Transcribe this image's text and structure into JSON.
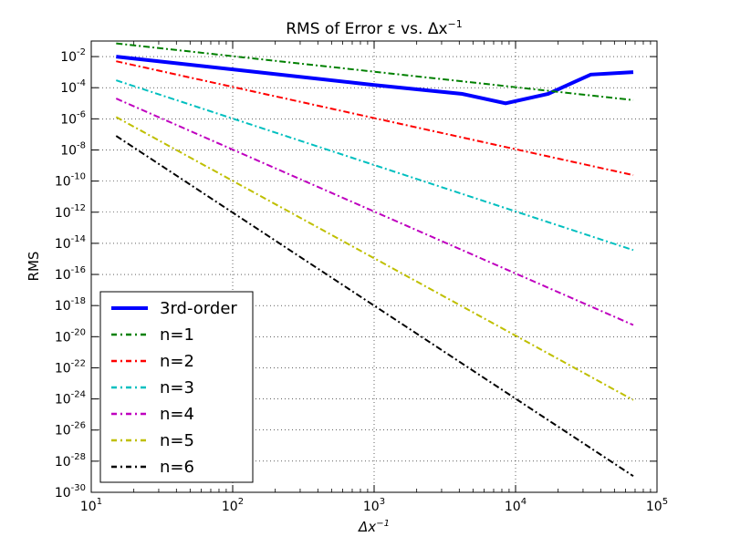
{
  "chart_data": {
    "type": "line",
    "title": "RMS of Error ε vs. Δx",
    "title_superscript": "−1",
    "xlabel": "Δx",
    "xlabel_superscript": "−1",
    "ylabel": "RMS",
    "xscale": "log",
    "yscale": "log",
    "xlim": [
      10,
      100000
    ],
    "ylim": [
      1e-30,
      0.1
    ],
    "grid": true,
    "legend_position": "lower-left",
    "xticks": [
      {
        "value": 10,
        "base": "10",
        "exp": "1"
      },
      {
        "value": 100,
        "base": "10",
        "exp": "2"
      },
      {
        "value": 1000,
        "base": "10",
        "exp": "3"
      },
      {
        "value": 10000,
        "base": "10",
        "exp": "4"
      },
      {
        "value": 100000,
        "base": "10",
        "exp": "5"
      }
    ],
    "yticks": [
      {
        "value": 0.01,
        "base": "10",
        "exp": "-2"
      },
      {
        "value": 0.0001,
        "base": "10",
        "exp": "-4"
      },
      {
        "value": 1e-06,
        "base": "10",
        "exp": "-6"
      },
      {
        "value": 1e-08,
        "base": "10",
        "exp": "-8"
      },
      {
        "value": 1e-10,
        "base": "10",
        "exp": "-10"
      },
      {
        "value": 1e-12,
        "base": "10",
        "exp": "-12"
      },
      {
        "value": 1e-14,
        "base": "10",
        "exp": "-14"
      },
      {
        "value": 1e-16,
        "base": "10",
        "exp": "-16"
      },
      {
        "value": 1e-18,
        "base": "10",
        "exp": "-18"
      },
      {
        "value": 1e-20,
        "base": "10",
        "exp": "-20"
      },
      {
        "value": 1e-22,
        "base": "10",
        "exp": "-22"
      },
      {
        "value": 1e-24,
        "base": "10",
        "exp": "-24"
      },
      {
        "value": 1e-26,
        "base": "10",
        "exp": "-26"
      },
      {
        "value": 1e-28,
        "base": "10",
        "exp": "-28"
      },
      {
        "value": 1e-30,
        "base": "10",
        "exp": "-30"
      }
    ],
    "series": [
      {
        "name": "3rd-order",
        "color": "#0000ff",
        "style": "solid",
        "x": [
          15,
          100,
          1000,
          4200,
          8500,
          17000,
          34000,
          68000
        ],
        "y": [
          0.01,
          0.0015,
          0.00015,
          4e-05,
          1e-05,
          4e-05,
          0.0007,
          0.001
        ]
      },
      {
        "name": "n=1",
        "color": "#008000",
        "style": "dashdot",
        "x": [
          15,
          68000
        ],
        "y": [
          0.07,
          1.6e-05
        ]
      },
      {
        "name": "n=2",
        "color": "#ff0000",
        "style": "dashdot",
        "x": [
          15,
          68000
        ],
        "y": [
          0.005,
          2.4e-10
        ]
      },
      {
        "name": "n=3",
        "color": "#00bfbf",
        "style": "dashdot",
        "x": [
          15,
          68000
        ],
        "y": [
          0.0003,
          3.7e-15
        ]
      },
      {
        "name": "n=4",
        "color": "#bf00bf",
        "style": "dashdot",
        "x": [
          15,
          68000
        ],
        "y": [
          2e-05,
          5.6e-20
        ]
      },
      {
        "name": "n=5",
        "color": "#bfbf00",
        "style": "dashdot",
        "x": [
          15,
          68000
        ],
        "y": [
          1.3e-06,
          8.5e-25
        ]
      },
      {
        "name": "n=6",
        "color": "#000000",
        "style": "dashdot",
        "x": [
          15,
          68000
        ],
        "y": [
          8e-08,
          1.1e-29
        ]
      }
    ]
  }
}
